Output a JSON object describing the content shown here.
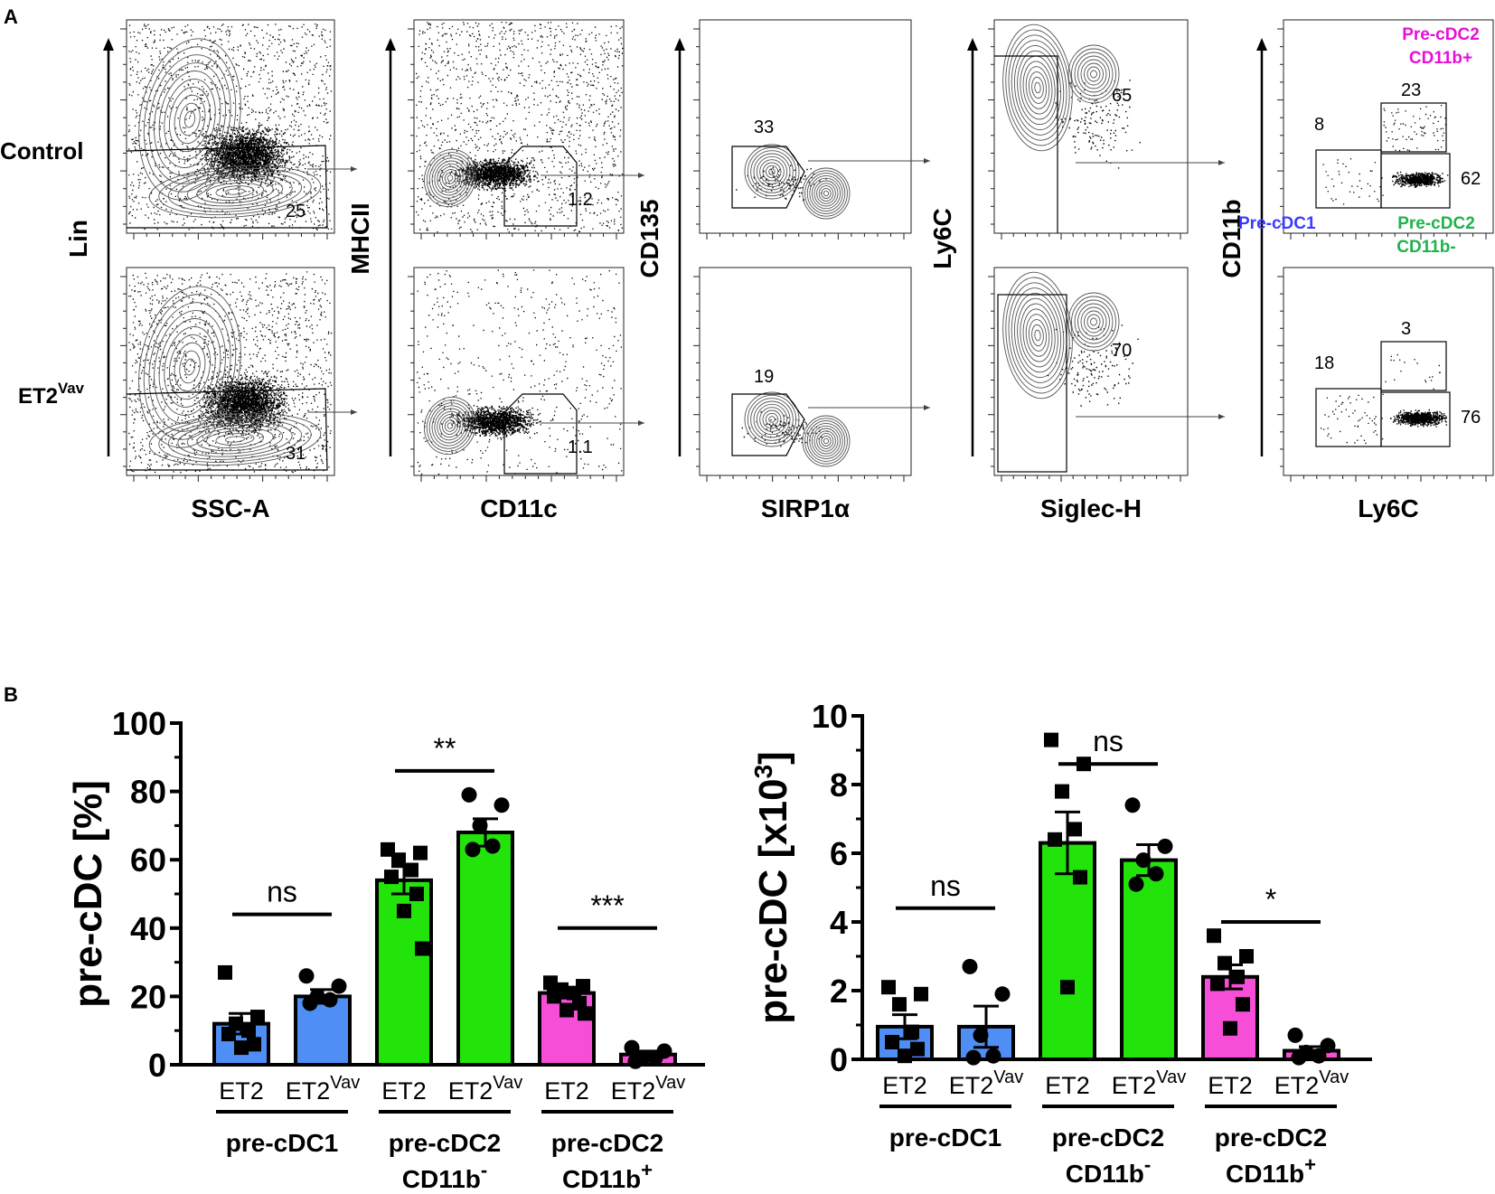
{
  "panel_a": {
    "label": "A",
    "row_labels": {
      "control": "Control",
      "et2_main": "ET2",
      "et2_sup": "Vav"
    },
    "plots": [
      {
        "ylabel": "Lin",
        "xlabel": "SSC-A",
        "values": {
          "control": "25",
          "et2vav": "31"
        }
      },
      {
        "ylabel": "MHCII",
        "xlabel": "CD11c",
        "values": {
          "control": "1.2",
          "et2vav": "1.1"
        }
      },
      {
        "ylabel": "CD135",
        "xlabel": "SIRP1α",
        "values": {
          "control": "33",
          "et2vav": "19"
        }
      },
      {
        "ylabel": "Ly6C",
        "xlabel": "Siglec-H",
        "values": {
          "control": "65",
          "et2vav": "70"
        }
      },
      {
        "ylabel": "CD11b",
        "xlabel": "Ly6C",
        "values": {
          "control": {
            "pre_cdc1": "8",
            "cd11b_pos": "23",
            "cd11b_neg": "62"
          },
          "et2vav": {
            "pre_cdc1": "18",
            "cd11b_pos": "3",
            "cd11b_neg": "76"
          }
        }
      }
    ],
    "gate_labels": {
      "pre_cdc1": "Pre-cDC1",
      "pre_cdc2_pos_line1": "Pre-cDC2",
      "pre_cdc2_pos_line2": "CD11b+",
      "pre_cdc2_neg_line1": "Pre-cDC2",
      "pre_cdc2_neg_line2": "CD11b-"
    }
  },
  "panel_b_label": "B",
  "colors": {
    "pre_cdc1": "#4f8ef5",
    "cd11b_neg": "#22e40a",
    "cd11b_pos": "#f74ed8",
    "label_blue": "#3b3bff",
    "label_green": "#1fb34a",
    "label_magenta": "#e810d8"
  },
  "chart_data": [
    {
      "type": "bar",
      "ylabel": "pre-cDC [%]",
      "ylim": [
        0,
        100
      ],
      "yticks": [
        "0",
        "20",
        "40",
        "60",
        "80",
        "100"
      ],
      "bar_labels": [
        {
          "main": "ET2",
          "sup": ""
        },
        {
          "main": "ET2",
          "sup": "Vav"
        },
        {
          "main": "ET2",
          "sup": ""
        },
        {
          "main": "ET2",
          "sup": "Vav"
        },
        {
          "main": "ET2",
          "sup": ""
        },
        {
          "main": "ET2",
          "sup": "Vav"
        }
      ],
      "groups": [
        {
          "line1": "pre-cDC1",
          "line2": "",
          "sup": ""
        },
        {
          "line1": "pre-cDC2",
          "line2": "CD11b",
          "sup": "-"
        },
        {
          "line1": "pre-cDC2",
          "line2": "CD11b",
          "sup": "+"
        }
      ],
      "bars": [
        {
          "value": 12,
          "sem": 3,
          "color": "#4f8ef5",
          "marker": "square",
          "points": [
            27,
            14,
            12,
            10,
            9,
            6,
            5
          ]
        },
        {
          "value": 20,
          "sem": 2,
          "color": "#4f8ef5",
          "marker": "circle",
          "points": [
            26,
            23,
            20,
            19,
            18
          ]
        },
        {
          "value": 54,
          "sem": 4,
          "color": "#22e40a",
          "marker": "square",
          "points": [
            63,
            62,
            60,
            57,
            55,
            50,
            45,
            34
          ]
        },
        {
          "value": 68,
          "sem": 4,
          "color": "#22e40a",
          "marker": "circle",
          "points": [
            79,
            76,
            70,
            64,
            63
          ]
        },
        {
          "value": 21,
          "sem": 1.5,
          "color": "#f74ed8",
          "marker": "square",
          "points": [
            24,
            23,
            22,
            21,
            20,
            18,
            16,
            15
          ]
        },
        {
          "value": 3,
          "sem": 1,
          "color": "#f74ed8",
          "marker": "circle",
          "points": [
            5,
            4,
            2,
            2,
            1
          ]
        }
      ],
      "comparisons": [
        {
          "bars": [
            0,
            1
          ],
          "label": "ns",
          "y": 44
        },
        {
          "bars": [
            2,
            3
          ],
          "label": "**",
          "y": 86
        },
        {
          "bars": [
            4,
            5
          ],
          "label": "***",
          "y": 40
        }
      ]
    },
    {
      "type": "bar",
      "ylabel": "pre-cDC [x10",
      "ylabel_sup": "3",
      "ylabel_end": "]",
      "ylim": [
        0,
        10
      ],
      "yticks": [
        "0",
        "2",
        "4",
        "6",
        "8",
        "10"
      ],
      "bar_labels": [
        {
          "main": "ET2",
          "sup": ""
        },
        {
          "main": "ET2",
          "sup": "Vav"
        },
        {
          "main": "ET2",
          "sup": ""
        },
        {
          "main": "ET2",
          "sup": "Vav"
        },
        {
          "main": "ET2",
          "sup": ""
        },
        {
          "main": "ET2",
          "sup": "Vav"
        }
      ],
      "groups": [
        {
          "line1": "pre-cDC1",
          "line2": "",
          "sup": ""
        },
        {
          "line1": "pre-cDC2",
          "line2": "CD11b",
          "sup": "-"
        },
        {
          "line1": "pre-cDC2",
          "line2": "CD11b",
          "sup": "+"
        }
      ],
      "bars": [
        {
          "value": 0.95,
          "sem": 0.35,
          "color": "#4f8ef5",
          "marker": "square",
          "points": [
            2.1,
            1.9,
            1.6,
            0.8,
            0.5,
            0.3,
            0.1
          ]
        },
        {
          "value": 0.95,
          "sem": 0.6,
          "color": "#4f8ef5",
          "marker": "circle",
          "points": [
            2.7,
            1.9,
            0.7,
            0.1,
            0.05
          ]
        },
        {
          "value": 6.3,
          "sem": 0.9,
          "color": "#22e40a",
          "marker": "square",
          "points": [
            9.3,
            8.6,
            7.8,
            6.7,
            6.4,
            5.3,
            2.1
          ]
        },
        {
          "value": 5.8,
          "sem": 0.45,
          "color": "#22e40a",
          "marker": "circle",
          "points": [
            7.4,
            6.2,
            5.8,
            5.4,
            5.1
          ]
        },
        {
          "value": 2.4,
          "sem": 0.35,
          "color": "#f74ed8",
          "marker": "square",
          "points": [
            3.6,
            3.0,
            2.8,
            2.4,
            2.2,
            1.6,
            0.9
          ]
        },
        {
          "value": 0.25,
          "sem": 0.12,
          "color": "#f74ed8",
          "marker": "circle",
          "points": [
            0.7,
            0.4,
            0.2,
            0.1,
            0.05
          ]
        }
      ],
      "comparisons": [
        {
          "bars": [
            0,
            1
          ],
          "label": "ns",
          "y": 4.4
        },
        {
          "bars": [
            2,
            3
          ],
          "label": "ns",
          "y": 8.6
        },
        {
          "bars": [
            4,
            5
          ],
          "label": "*",
          "y": 4.0
        }
      ]
    }
  ]
}
